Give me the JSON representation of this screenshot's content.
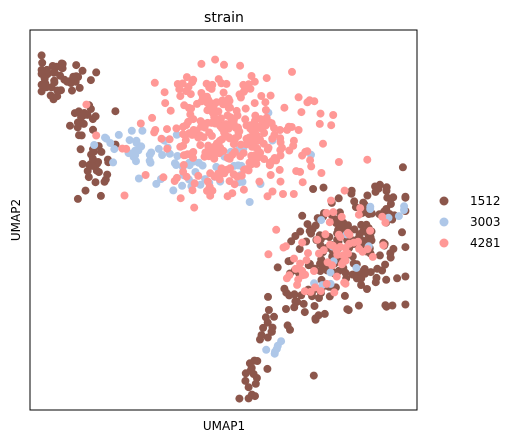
{
  "chart_data": {
    "type": "scatter",
    "title": "strain",
    "xlabel": "UMAP1",
    "ylabel": "UMAP2",
    "xlim": [
      0,
      100
    ],
    "ylim": [
      0,
      100
    ],
    "ticks": "none",
    "grid": false,
    "legend_position": "right",
    "series": [
      {
        "name": "1512",
        "color": "#8c564b",
        "regions": [
          {
            "cx": 8,
            "cy": 87,
            "sx": 4,
            "sy": 3,
            "n": 45
          },
          {
            "cx": 15,
            "cy": 76,
            "sx": 3,
            "sy": 3,
            "n": 20
          },
          {
            "cx": 17,
            "cy": 64,
            "sx": 2,
            "sy": 4,
            "n": 25
          },
          {
            "cx": 88,
            "cy": 54,
            "sx": 5,
            "sy": 3,
            "n": 30
          },
          {
            "cx": 82,
            "cy": 42,
            "sx": 7,
            "sy": 7,
            "n": 150
          },
          {
            "cx": 72,
            "cy": 31,
            "sx": 5,
            "sy": 4,
            "n": 30
          },
          {
            "cx": 62,
            "cy": 21,
            "sx": 3,
            "sy": 3,
            "n": 12
          },
          {
            "cx": 57,
            "cy": 9,
            "sx": 1.5,
            "sy": 4,
            "n": 15
          }
        ]
      },
      {
        "name": "3003",
        "color": "#aec7e8",
        "regions": [
          {
            "cx": 27,
            "cy": 68,
            "sx": 5,
            "sy": 3,
            "n": 30
          },
          {
            "cx": 43,
            "cy": 62,
            "sx": 6,
            "sy": 3,
            "n": 30
          },
          {
            "cx": 57,
            "cy": 66,
            "sx": 6,
            "sy": 5,
            "n": 15
          },
          {
            "cx": 93,
            "cy": 51,
            "sx": 3,
            "sy": 2,
            "n": 6
          },
          {
            "cx": 80,
            "cy": 40,
            "sx": 6,
            "sy": 6,
            "n": 10
          },
          {
            "cx": 63,
            "cy": 18,
            "sx": 3,
            "sy": 2,
            "n": 6
          }
        ]
      },
      {
        "name": "4281",
        "color": "#ff9896",
        "regions": [
          {
            "cx": 53,
            "cy": 72,
            "sx": 11,
            "sy": 8,
            "n": 300
          },
          {
            "cx": 46,
            "cy": 83,
            "sx": 4,
            "sy": 4,
            "n": 20
          },
          {
            "cx": 80,
            "cy": 44,
            "sx": 7,
            "sy": 6,
            "n": 50
          },
          {
            "cx": 72,
            "cy": 38,
            "sx": 4,
            "sy": 4,
            "n": 20
          }
        ]
      }
    ]
  }
}
